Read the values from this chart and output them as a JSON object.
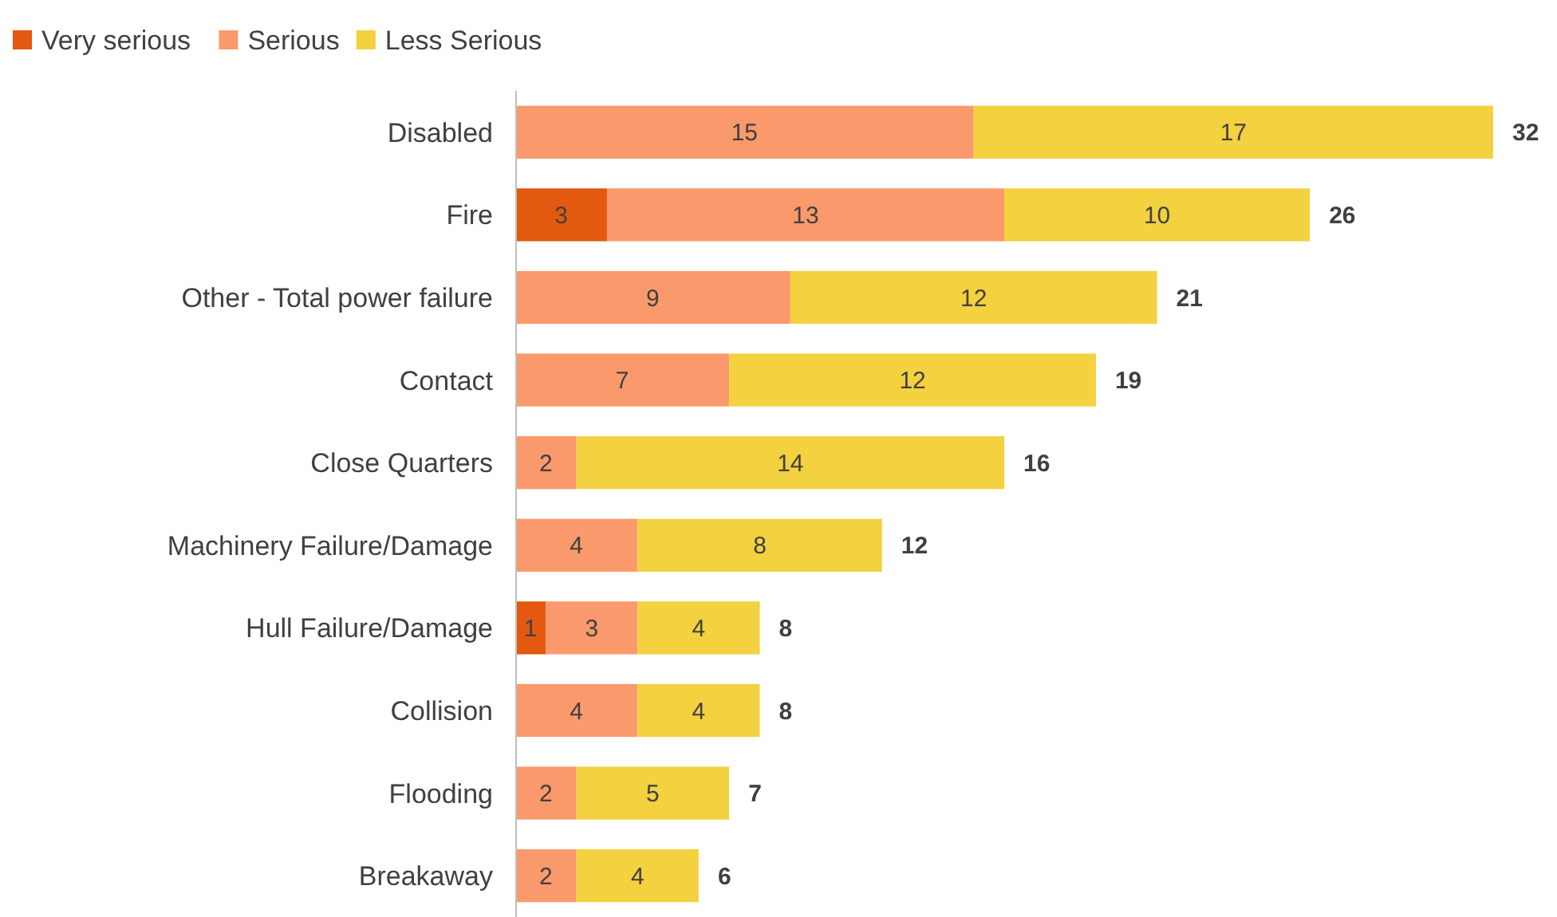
{
  "chart_data": {
    "type": "bar",
    "orientation": "horizontal",
    "stacked": true,
    "data_labels": true,
    "legend": "top left",
    "categories": [
      "Disabled",
      "Fire",
      "Other - Total power failure",
      "Contact",
      "Close Quarters",
      "Machinery Failure/Damage",
      "Hull Failure/Damage",
      "Collision",
      "Flooding",
      "Breakaway"
    ],
    "series": [
      {
        "name": "Very serious",
        "color": "#e2590f",
        "values": [
          null,
          3,
          null,
          null,
          null,
          null,
          1,
          null,
          null,
          null
        ]
      },
      {
        "name": "Serious",
        "color": "#fa9a6c",
        "values": [
          15,
          13,
          9,
          7,
          2,
          4,
          3,
          4,
          2,
          2
        ]
      },
      {
        "name": "Less Serious",
        "color": "#f3d13f",
        "values": [
          17,
          10,
          12,
          12,
          14,
          8,
          4,
          4,
          5,
          4
        ]
      }
    ],
    "totals": [
      "32",
      "26",
      "21",
      "19",
      "16",
      "12",
      "8",
      "8",
      "7",
      "6"
    ]
  }
}
